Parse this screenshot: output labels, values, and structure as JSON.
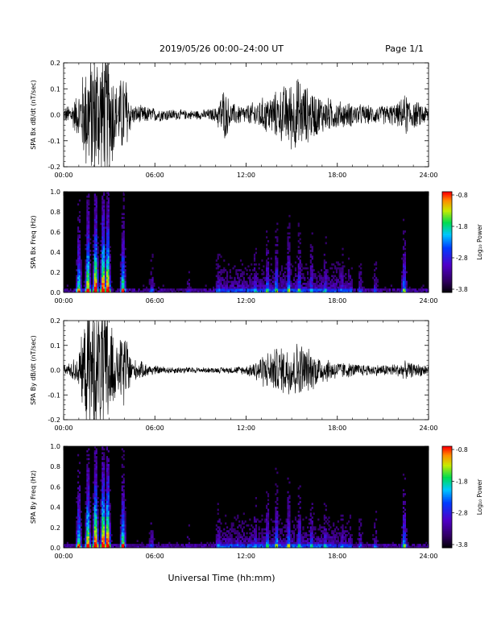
{
  "header": {
    "title": "2019/05/26  00:00–24:00 UT",
    "page": "Page 1/1"
  },
  "xlabel": "Universal Time (hh:mm)",
  "colorbar": {
    "label": "Log₁₀ Power",
    "ticks": [
      "-0.8",
      "-1.8",
      "-2.8",
      "-3.8"
    ]
  },
  "chart_data": [
    {
      "type": "line",
      "id": "bx_timeseries",
      "ylabel": "SPA Bx dB/dt (nT/sec)",
      "xlim": [
        0,
        24
      ],
      "ylim": [
        -0.2,
        0.2
      ],
      "xticks": [
        "00:00",
        "06:00",
        "12:00",
        "18:00",
        "24:00"
      ],
      "yticks": [
        "0.2",
        "0.1",
        "0.0",
        "-0.1",
        "-0.2"
      ],
      "envelope": {
        "hours": [
          0.0,
          0.5,
          1.0,
          1.5,
          2.0,
          2.5,
          3.0,
          3.5,
          4.0,
          4.5,
          5.0,
          6.0,
          7.0,
          8.0,
          9.0,
          10.0,
          10.5,
          11.0,
          12.0,
          13.0,
          14.0,
          15.0,
          15.5,
          16.0,
          16.5,
          17.0,
          18.0,
          19.0,
          20.0,
          21.0,
          22.0,
          22.5,
          23.0,
          24.0
        ],
        "amplitude": [
          0.03,
          0.05,
          0.1,
          0.25,
          0.3,
          0.3,
          0.3,
          0.12,
          0.2,
          0.04,
          0.04,
          0.03,
          0.025,
          0.02,
          0.02,
          0.03,
          0.12,
          0.05,
          0.04,
          0.07,
          0.1,
          0.15,
          0.16,
          0.12,
          0.1,
          0.08,
          0.06,
          0.05,
          0.04,
          0.04,
          0.05,
          0.09,
          0.06,
          0.04
        ]
      }
    },
    {
      "type": "heatmap",
      "id": "bx_spectrogram",
      "ylabel": "SPA Bx Freq (Hz)",
      "xlim": [
        0,
        24
      ],
      "ylim": [
        0,
        1.0
      ],
      "xticks": [
        "00:00",
        "06:00",
        "12:00",
        "18:00",
        "24:00"
      ],
      "yticks": [
        "1.0",
        "0.8",
        "0.6",
        "0.4",
        "0.2",
        "0.0"
      ],
      "zlim": [
        -3.8,
        -0.8
      ],
      "zlabel": "Log10 Power"
    },
    {
      "type": "line",
      "id": "by_timeseries",
      "ylabel": "SPA By dB/dt (nT/sec)",
      "xlim": [
        0,
        24
      ],
      "ylim": [
        -0.2,
        0.2
      ],
      "xticks": [
        "00:00",
        "06:00",
        "12:00",
        "18:00",
        "24:00"
      ],
      "yticks": [
        "0.2",
        "0.1",
        "0.0",
        "-0.1",
        "-0.2"
      ],
      "envelope": {
        "hours": [
          0.0,
          0.5,
          1.0,
          1.5,
          2.0,
          2.5,
          3.0,
          3.5,
          4.0,
          4.5,
          5.0,
          6.0,
          7.0,
          8.0,
          9.0,
          10.0,
          11.0,
          12.0,
          12.5,
          13.0,
          14.0,
          15.0,
          15.5,
          16.0,
          16.5,
          17.0,
          18.0,
          19.0,
          20.0,
          21.0,
          22.0,
          22.5,
          23.0,
          24.0
        ],
        "amplitude": [
          0.02,
          0.04,
          0.08,
          0.25,
          0.3,
          0.3,
          0.3,
          0.1,
          0.2,
          0.05,
          0.04,
          0.02,
          0.015,
          0.015,
          0.012,
          0.012,
          0.015,
          0.02,
          0.04,
          0.07,
          0.1,
          0.12,
          0.13,
          0.1,
          0.08,
          0.06,
          0.04,
          0.03,
          0.025,
          0.025,
          0.03,
          0.04,
          0.03,
          0.025
        ]
      }
    },
    {
      "type": "heatmap",
      "id": "by_spectrogram",
      "ylabel": "SPA By Freq (Hz)",
      "xlim": [
        0,
        24
      ],
      "ylim": [
        0,
        1.0
      ],
      "xticks": [
        "00:00",
        "06:00",
        "12:00",
        "18:00",
        "24:00"
      ],
      "yticks": [
        "1.0",
        "0.8",
        "0.6",
        "0.4",
        "0.2",
        "0.0"
      ],
      "zlim": [
        -3.8,
        -0.8
      ],
      "zlabel": "Log10 Power"
    }
  ]
}
